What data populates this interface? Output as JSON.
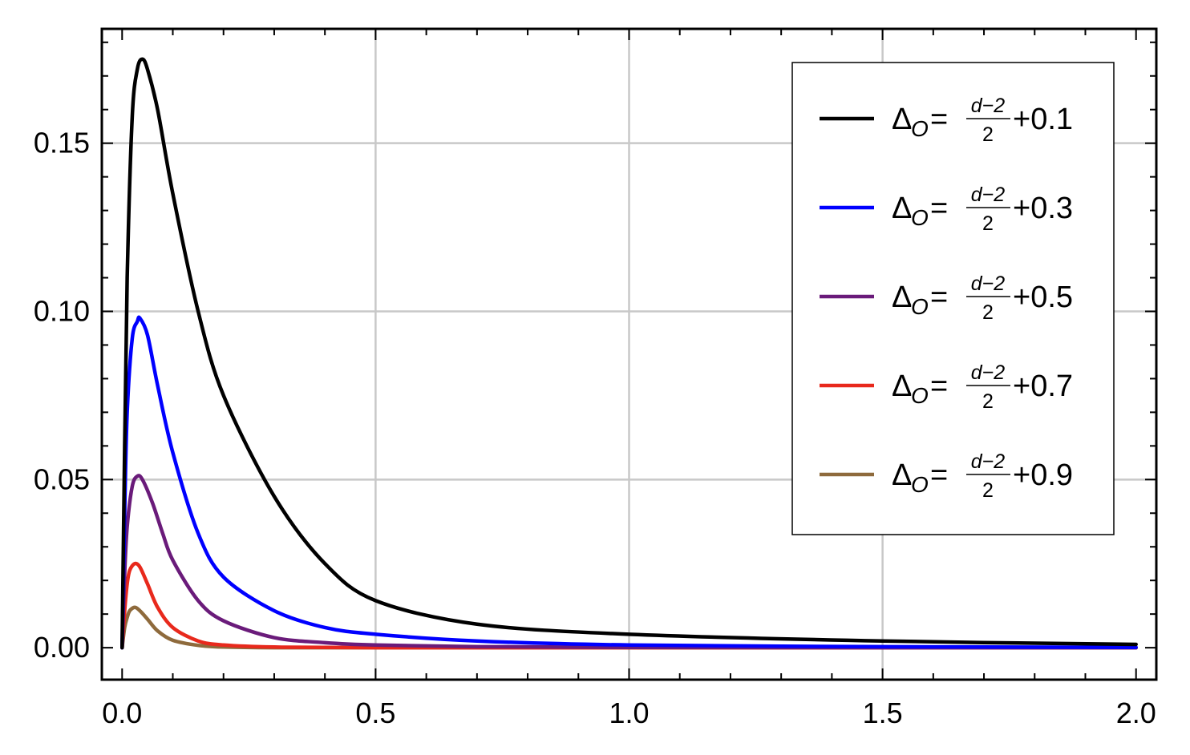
{
  "chart_data": {
    "type": "line",
    "xlim": [
      -0.04,
      2.04
    ],
    "ylim": [
      -0.0095,
      0.184
    ],
    "grid": true,
    "grid_x": [
      0.5,
      1.0,
      1.5
    ],
    "grid_y": [
      0.05,
      0.1,
      0.15
    ],
    "x_ticks": [
      {
        "value": 0.0,
        "label": "0.0"
      },
      {
        "value": 0.5,
        "label": "0.5"
      },
      {
        "value": 1.0,
        "label": "1.0"
      },
      {
        "value": 1.5,
        "label": "1.5"
      },
      {
        "value": 2.0,
        "label": "2.0"
      }
    ],
    "y_ticks": [
      {
        "value": 0.0,
        "label": "0.00"
      },
      {
        "value": 0.05,
        "label": "0.05"
      },
      {
        "value": 0.1,
        "label": "0.10"
      },
      {
        "value": 0.15,
        "label": "0.15"
      }
    ],
    "legend_position": "top-right",
    "series": [
      {
        "name": "+0.1",
        "color": "#000000",
        "x": [
          0,
          0.005,
          0.01,
          0.02,
          0.03,
          0.04,
          0.05,
          0.07,
          0.1,
          0.15,
          0.2,
          0.3,
          0.4,
          0.5,
          0.7,
          1.0,
          1.5,
          2.0
        ],
        "y": [
          0,
          0.06,
          0.11,
          0.158,
          0.172,
          0.175,
          0.172,
          0.16,
          0.135,
          0.1,
          0.075,
          0.045,
          0.025,
          0.014,
          0.007,
          0.004,
          0.002,
          0.001
        ]
      },
      {
        "name": "+0.3",
        "color": "#0000ff",
        "x": [
          0,
          0.005,
          0.01,
          0.02,
          0.03,
          0.035,
          0.05,
          0.07,
          0.1,
          0.15,
          0.2,
          0.3,
          0.4,
          0.5,
          0.7,
          1.0,
          1.5,
          2.0
        ],
        "y": [
          0,
          0.04,
          0.07,
          0.092,
          0.097,
          0.098,
          0.093,
          0.078,
          0.058,
          0.034,
          0.021,
          0.011,
          0.006,
          0.004,
          0.002,
          0.0008,
          0.0003,
          0.0001
        ]
      },
      {
        "name": "+0.5",
        "color": "#6a1b7a",
        "x": [
          0,
          0.005,
          0.01,
          0.02,
          0.03,
          0.04,
          0.06,
          0.08,
          0.1,
          0.15,
          0.2,
          0.3,
          0.4,
          0.5,
          0.7,
          1.0,
          1.5,
          2.0
        ],
        "y": [
          0,
          0.022,
          0.036,
          0.048,
          0.051,
          0.05,
          0.043,
          0.034,
          0.026,
          0.014,
          0.008,
          0.003,
          0.0015,
          0.0008,
          0.0003,
          0.0001,
          0.0,
          0.0
        ]
      },
      {
        "name": "+0.7",
        "color": "#e8291c",
        "x": [
          0,
          0.005,
          0.01,
          0.015,
          0.025,
          0.035,
          0.05,
          0.07,
          0.1,
          0.15,
          0.2,
          0.3,
          0.5,
          1.0,
          2.0
        ],
        "y": [
          0,
          0.011,
          0.019,
          0.023,
          0.025,
          0.024,
          0.019,
          0.012,
          0.006,
          0.002,
          0.0008,
          0.0002,
          0.0,
          0.0,
          0.0
        ]
      },
      {
        "name": "+0.9",
        "color": "#8e6a3c",
        "x": [
          0,
          0.005,
          0.01,
          0.015,
          0.025,
          0.035,
          0.05,
          0.07,
          0.1,
          0.15,
          0.2,
          0.3,
          0.5,
          1.0,
          2.0
        ],
        "y": [
          0,
          0.006,
          0.009,
          0.011,
          0.012,
          0.011,
          0.0085,
          0.005,
          0.0022,
          0.0007,
          0.0002,
          0.0,
          0.0,
          0.0,
          0.0
        ]
      }
    ],
    "legend_label_parts": {
      "delta": "Δ",
      "subscript": "O",
      "equals": "=",
      "numerator": "d−2",
      "denominator": "2"
    }
  }
}
